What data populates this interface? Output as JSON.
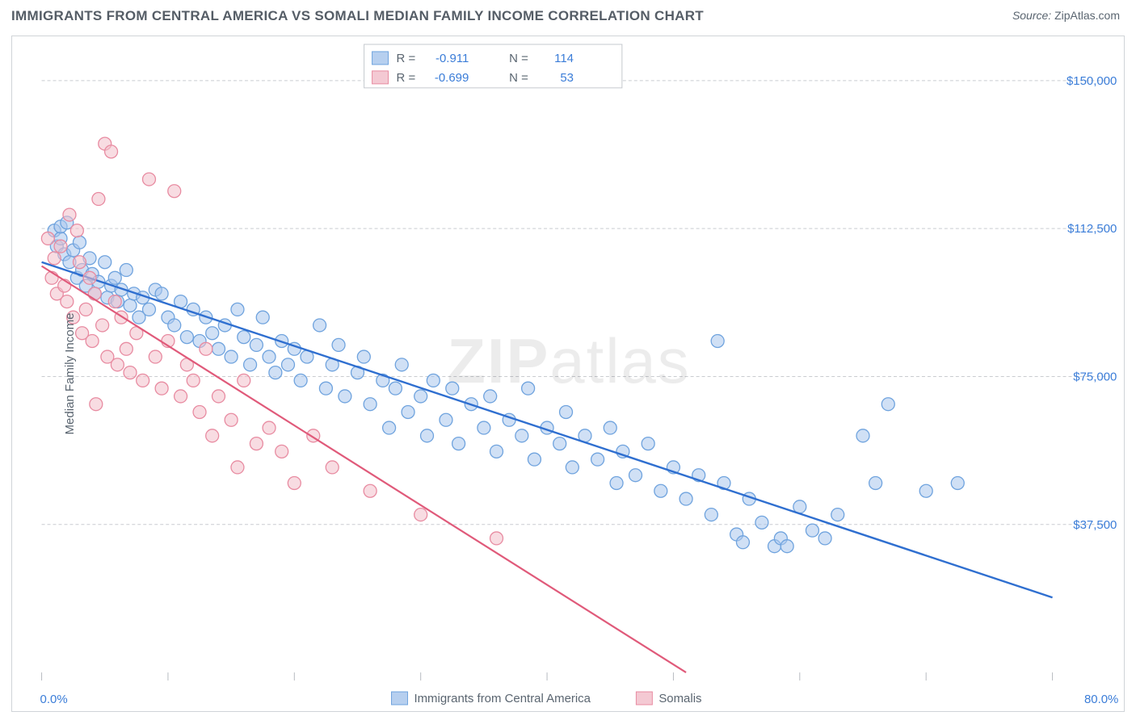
{
  "header": {
    "title": "IMMIGRANTS FROM CENTRAL AMERICA VS SOMALI MEDIAN FAMILY INCOME CORRELATION CHART",
    "source_prefix": "Source: ",
    "source_name": "ZipAtlas.com"
  },
  "chart": {
    "type": "scatter",
    "background_color": "#ffffff",
    "border_color": "#d0d4d8",
    "grid_color": "#c9ccd0",
    "xlim": [
      0,
      80
    ],
    "ylim": [
      0,
      160000
    ],
    "x_tick_positions": [
      0,
      10,
      20,
      30,
      40,
      50,
      60,
      70,
      80
    ],
    "x_tick_labels_shown": {
      "0": "0.0%",
      "80": "80.0%"
    },
    "y_tick_positions": [
      37500,
      75000,
      112500,
      150000
    ],
    "y_tick_labels": [
      "$37,500",
      "$75,000",
      "$112,500",
      "$150,000"
    ],
    "y_axis_label": "Median Family Income",
    "y_label_color": "#5a6570",
    "tick_label_color": "#3b7dd8",
    "tick_label_fontsize": 15,
    "title_fontsize": 17,
    "watermark_text_bold": "ZIP",
    "watermark_text_light": "atlas",
    "watermark_opacity": 0.07,
    "series": [
      {
        "name": "Immigrants from Central America",
        "color_fill": "#a9c7ec",
        "color_stroke": "#6fa3de",
        "fill_opacity": 0.55,
        "marker_radius": 8,
        "regression": {
          "color": "#2f6fd0",
          "width": 2.4,
          "x1": 0,
          "y1": 104000,
          "x2": 80,
          "y2": 19000
        },
        "R": "-0.911",
        "N": "114",
        "points": [
          [
            1.0,
            112000
          ],
          [
            1.2,
            108000
          ],
          [
            1.5,
            110000
          ],
          [
            1.5,
            113000
          ],
          [
            1.8,
            106000
          ],
          [
            2.0,
            114000
          ],
          [
            2.2,
            104000
          ],
          [
            2.5,
            107000
          ],
          [
            2.8,
            100000
          ],
          [
            3.0,
            109000
          ],
          [
            3.2,
            102000
          ],
          [
            3.5,
            98000
          ],
          [
            3.8,
            105000
          ],
          [
            4.0,
            101000
          ],
          [
            4.2,
            96000
          ],
          [
            4.5,
            99000
          ],
          [
            5.0,
            104000
          ],
          [
            5.2,
            95000
          ],
          [
            5.5,
            98000
          ],
          [
            5.8,
            100000
          ],
          [
            6.0,
            94000
          ],
          [
            6.3,
            97000
          ],
          [
            6.7,
            102000
          ],
          [
            7.0,
            93000
          ],
          [
            7.3,
            96000
          ],
          [
            7.7,
            90000
          ],
          [
            8.0,
            95000
          ],
          [
            8.5,
            92000
          ],
          [
            9.0,
            97000
          ],
          [
            9.5,
            96000
          ],
          [
            10.0,
            90000
          ],
          [
            10.5,
            88000
          ],
          [
            11.0,
            94000
          ],
          [
            11.5,
            85000
          ],
          [
            12.0,
            92000
          ],
          [
            12.5,
            84000
          ],
          [
            13.0,
            90000
          ],
          [
            13.5,
            86000
          ],
          [
            14.0,
            82000
          ],
          [
            14.5,
            88000
          ],
          [
            15.0,
            80000
          ],
          [
            15.5,
            92000
          ],
          [
            16.0,
            85000
          ],
          [
            16.5,
            78000
          ],
          [
            17.0,
            83000
          ],
          [
            17.5,
            90000
          ],
          [
            18.0,
            80000
          ],
          [
            18.5,
            76000
          ],
          [
            19.0,
            84000
          ],
          [
            19.5,
            78000
          ],
          [
            20.0,
            82000
          ],
          [
            20.5,
            74000
          ],
          [
            21.0,
            80000
          ],
          [
            22.0,
            88000
          ],
          [
            22.5,
            72000
          ],
          [
            23.0,
            78000
          ],
          [
            23.5,
            83000
          ],
          [
            24.0,
            70000
          ],
          [
            25.0,
            76000
          ],
          [
            25.5,
            80000
          ],
          [
            26.0,
            68000
          ],
          [
            27.0,
            74000
          ],
          [
            27.5,
            62000
          ],
          [
            28.0,
            72000
          ],
          [
            28.5,
            78000
          ],
          [
            29.0,
            66000
          ],
          [
            30.0,
            70000
          ],
          [
            30.5,
            60000
          ],
          [
            31.0,
            74000
          ],
          [
            32.0,
            64000
          ],
          [
            32.5,
            72000
          ],
          [
            33.0,
            58000
          ],
          [
            34.0,
            68000
          ],
          [
            35.0,
            62000
          ],
          [
            35.5,
            70000
          ],
          [
            36.0,
            56000
          ],
          [
            37.0,
            64000
          ],
          [
            38.0,
            60000
          ],
          [
            38.5,
            72000
          ],
          [
            39.0,
            54000
          ],
          [
            40.0,
            62000
          ],
          [
            41.0,
            58000
          ],
          [
            41.5,
            66000
          ],
          [
            42.0,
            52000
          ],
          [
            43.0,
            60000
          ],
          [
            44.0,
            54000
          ],
          [
            45.0,
            62000
          ],
          [
            45.5,
            48000
          ],
          [
            46.0,
            56000
          ],
          [
            47.0,
            50000
          ],
          [
            48.0,
            58000
          ],
          [
            49.0,
            46000
          ],
          [
            50.0,
            52000
          ],
          [
            51.0,
            44000
          ],
          [
            52.0,
            50000
          ],
          [
            53.0,
            40000
          ],
          [
            54.0,
            48000
          ],
          [
            55.0,
            35000
          ],
          [
            56.0,
            44000
          ],
          [
            57.0,
            38000
          ],
          [
            58.0,
            32000
          ],
          [
            58.5,
            34000
          ],
          [
            59.0,
            32000
          ],
          [
            60.0,
            42000
          ],
          [
            61.0,
            36000
          ],
          [
            53.5,
            84000
          ],
          [
            63.0,
            40000
          ],
          [
            65.0,
            60000
          ],
          [
            66.0,
            48000
          ],
          [
            67.0,
            68000
          ],
          [
            70.0,
            46000
          ],
          [
            72.5,
            48000
          ],
          [
            62.0,
            34000
          ],
          [
            55.5,
            33000
          ]
        ]
      },
      {
        "name": "Somalis",
        "color_fill": "#f2c0cb",
        "color_stroke": "#e88ba1",
        "fill_opacity": 0.55,
        "marker_radius": 8,
        "regression": {
          "color": "#e05a7a",
          "width": 2.2,
          "x1": 0,
          "y1": 103000,
          "x2": 51,
          "y2": 0
        },
        "R": "-0.699",
        "N": "53",
        "points": [
          [
            0.5,
            110000
          ],
          [
            0.8,
            100000
          ],
          [
            1.0,
            105000
          ],
          [
            1.2,
            96000
          ],
          [
            1.5,
            108000
          ],
          [
            1.8,
            98000
          ],
          [
            2.0,
            94000
          ],
          [
            2.2,
            116000
          ],
          [
            2.5,
            90000
          ],
          [
            2.8,
            112000
          ],
          [
            3.0,
            104000
          ],
          [
            3.2,
            86000
          ],
          [
            3.5,
            92000
          ],
          [
            3.8,
            100000
          ],
          [
            4.0,
            84000
          ],
          [
            4.2,
            96000
          ],
          [
            4.5,
            120000
          ],
          [
            4.8,
            88000
          ],
          [
            5.0,
            134000
          ],
          [
            5.2,
            80000
          ],
          [
            5.5,
            132000
          ],
          [
            5.8,
            94000
          ],
          [
            6.0,
            78000
          ],
          [
            6.3,
            90000
          ],
          [
            6.7,
            82000
          ],
          [
            7.0,
            76000
          ],
          [
            7.5,
            86000
          ],
          [
            8.0,
            74000
          ],
          [
            8.5,
            125000
          ],
          [
            9.0,
            80000
          ],
          [
            9.5,
            72000
          ],
          [
            10.0,
            84000
          ],
          [
            10.5,
            122000
          ],
          [
            11.0,
            70000
          ],
          [
            11.5,
            78000
          ],
          [
            12.0,
            74000
          ],
          [
            12.5,
            66000
          ],
          [
            13.0,
            82000
          ],
          [
            13.5,
            60000
          ],
          [
            14.0,
            70000
          ],
          [
            15.0,
            64000
          ],
          [
            15.5,
            52000
          ],
          [
            16.0,
            74000
          ],
          [
            17.0,
            58000
          ],
          [
            18.0,
            62000
          ],
          [
            19.0,
            56000
          ],
          [
            20.0,
            48000
          ],
          [
            21.5,
            60000
          ],
          [
            23.0,
            52000
          ],
          [
            26.0,
            46000
          ],
          [
            30.0,
            40000
          ],
          [
            36.0,
            34000
          ],
          [
            4.3,
            68000
          ]
        ]
      }
    ],
    "legend_top": {
      "border_color": "#c5c9ce",
      "background": "#ffffff",
      "text_color": "#5a6570",
      "value_color": "#3b7dd8",
      "fontsize": 15
    },
    "legend_bottom_fontsize": 15
  }
}
